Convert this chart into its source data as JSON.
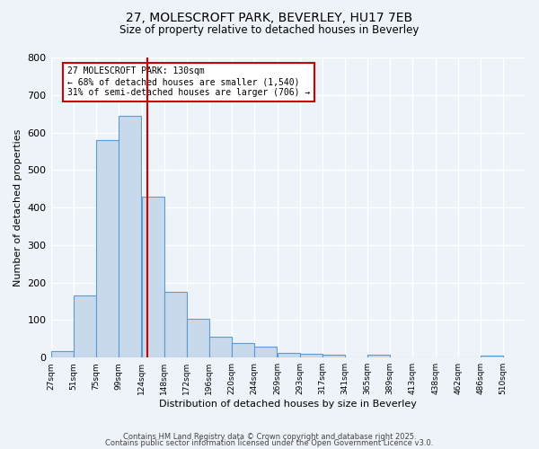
{
  "title1": "27, MOLESCROFT PARK, BEVERLEY, HU17 7EB",
  "title2": "Size of property relative to detached houses in Beverley",
  "xlabel": "Distribution of detached houses by size in Beverley",
  "ylabel": "Number of detached properties",
  "bar_left_edges": [
    27,
    51,
    75,
    99,
    124,
    148,
    172,
    196,
    220,
    244,
    269,
    293,
    317,
    341,
    365,
    389,
    413,
    438,
    462,
    486
  ],
  "bar_widths": [
    24,
    24,
    24,
    24,
    24,
    24,
    24,
    24,
    24,
    24,
    24,
    24,
    24,
    24,
    24,
    24,
    24,
    24,
    24,
    24
  ],
  "bar_heights": [
    18,
    165,
    580,
    645,
    430,
    175,
    103,
    55,
    38,
    30,
    13,
    10,
    8,
    0,
    7,
    0,
    0,
    0,
    0,
    5
  ],
  "tick_labels": [
    "27sqm",
    "51sqm",
    "75sqm",
    "99sqm",
    "124sqm",
    "148sqm",
    "172sqm",
    "196sqm",
    "220sqm",
    "244sqm",
    "269sqm",
    "293sqm",
    "317sqm",
    "341sqm",
    "365sqm",
    "389sqm",
    "413sqm",
    "438sqm",
    "462sqm",
    "486sqm",
    "510sqm"
  ],
  "tick_positions": [
    27,
    51,
    75,
    99,
    124,
    148,
    172,
    196,
    220,
    244,
    269,
    293,
    317,
    341,
    365,
    389,
    413,
    438,
    462,
    486,
    510
  ],
  "bar_color": "#c9d9ec",
  "bar_edge_color": "#5b9bd5",
  "red_line_x": 130,
  "ylim": [
    0,
    800
  ],
  "yticks": [
    0,
    100,
    200,
    300,
    400,
    500,
    600,
    700,
    800
  ],
  "annotation_text": "27 MOLESCROFT PARK: 130sqm\n← 68% of detached houses are smaller (1,540)\n31% of semi-detached houses are larger (706) →",
  "annotation_box_color": "#ffffff",
  "annotation_box_edge_color": "#cc0000",
  "footer1": "Contains HM Land Registry data © Crown copyright and database right 2025.",
  "footer2": "Contains public sector information licensed under the Open Government Licence v3.0.",
  "bg_color": "#eef2f9",
  "grid_color": "#ffffff"
}
